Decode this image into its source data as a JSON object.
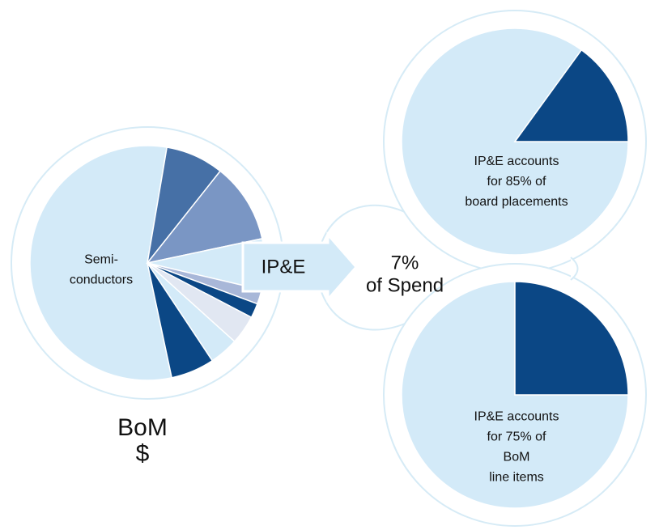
{
  "chart_data": [
    {
      "type": "pie",
      "categories": [
        "Semi-\nconductors",
        null,
        null,
        "IP&E",
        null,
        null,
        null,
        null,
        null
      ],
      "values": [
        56,
        8,
        11,
        7,
        2,
        2,
        4,
        4,
        6
      ],
      "colors": [
        "#d3eaf8",
        "#4670a6",
        "#7a96c4",
        "#d3eaf8",
        "#a8b7d8",
        "#0b4785",
        "#e1e7f2",
        "#d3eaf8",
        "#0b4785"
      ],
      "caption": "BoM\n$"
    },
    {
      "type": "pie",
      "values": [
        85,
        15
      ],
      "colors": [
        "#d3eaf8",
        "#0b4785"
      ],
      "caption": "IP&E accounts\nfor 85% of\nboard placements"
    },
    {
      "type": "pie",
      "values": [
        75,
        25
      ],
      "colors": [
        "#d3eaf8",
        "#0b4785"
      ],
      "caption": "IP&E accounts\nfor 75% of\nBoM\nline items"
    }
  ],
  "annotation": "7%\nof Spend"
}
